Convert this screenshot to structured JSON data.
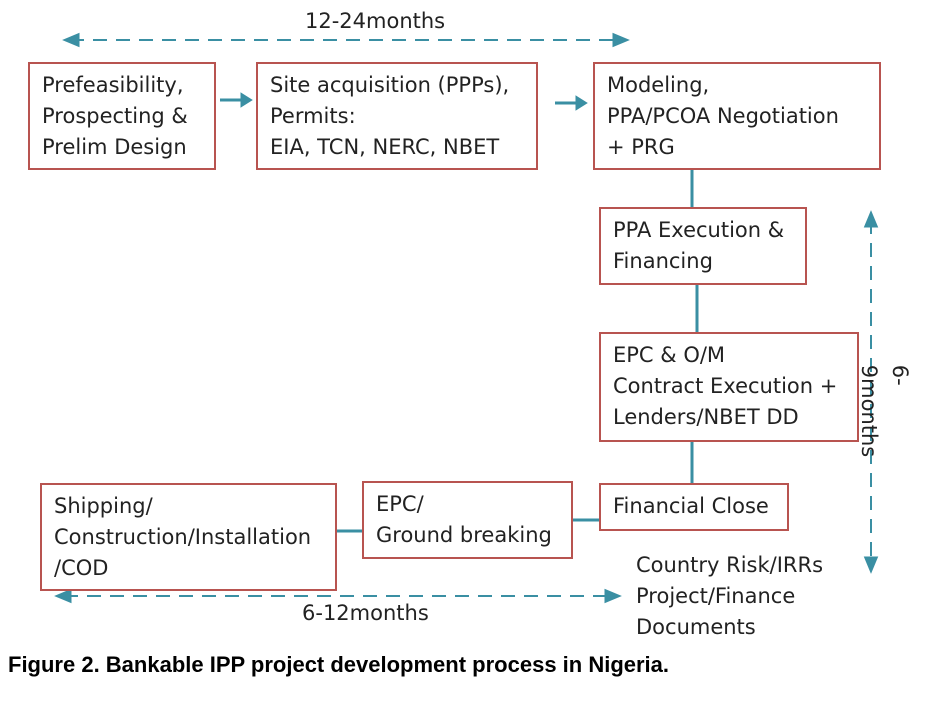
{
  "nodes": [
    {
      "label": "Prefeasibility,\nProspecting &\nPrelim Design"
    },
    {
      "label": "Site acquisition (PPPs),\nPermits:\nEIA, TCN, NERC, NBET"
    },
    {
      "label": "Modeling,\nPPA/PCOA Negotiation\n+ PRG"
    },
    {
      "label": "PPA Execution &\nFinancing"
    },
    {
      "label": "EPC & O/M\nContract Execution +\nLenders/NBET DD"
    },
    {
      "label": "Financial Close"
    },
    {
      "label": "EPC/\nGround breaking"
    },
    {
      "label": "Shipping/\nConstruction/Installation\n/COD"
    }
  ],
  "durations": [
    "12-24months",
    "6-9months",
    "6-12months"
  ],
  "note": "Country Risk/IRRs\nProject/Finance\nDocuments",
  "caption": "Figure 2. Bankable IPP project development process in Nigeria."
}
